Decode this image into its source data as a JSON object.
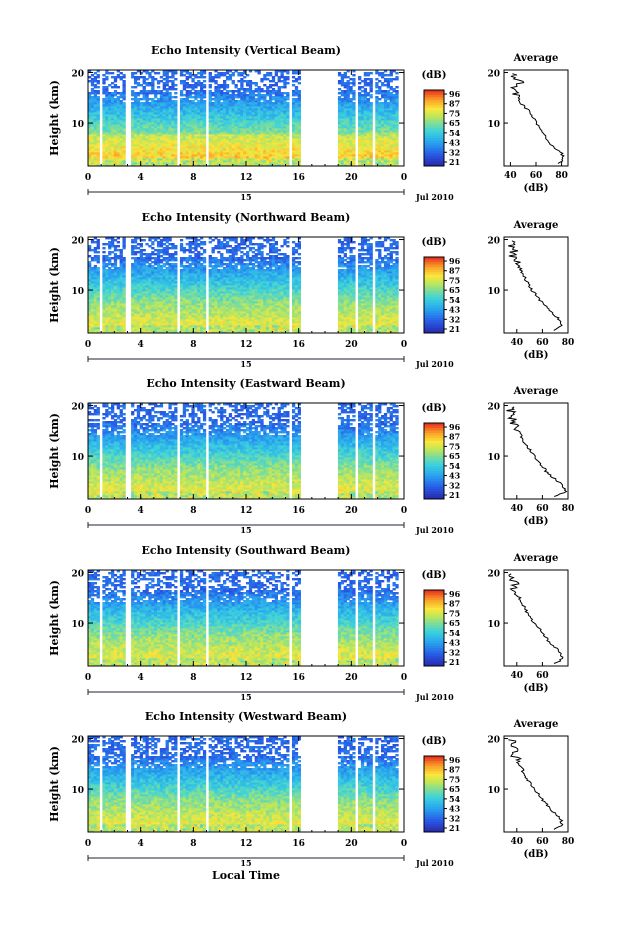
{
  "figure": {
    "xlabel_bottom": "Local Time",
    "date_label": "Jul 2010",
    "day_label": "15",
    "colorbar_unit": "(dB)",
    "colorbar_ticks": [
      "96",
      "87",
      "75",
      "65",
      "54",
      "43",
      "32",
      "21"
    ],
    "avg_title": "Average",
    "avg_xlabel": "(dB)",
    "height_label": "Height (km)"
  },
  "chart_data": [
    {
      "type": "heatmap",
      "title": "Echo Intensity (Vertical Beam)",
      "ylabel": "Height (km)",
      "x_ticks": [
        "0",
        "4",
        "8",
        "12",
        "16",
        "20",
        "0"
      ],
      "y_ticks": [
        "20",
        "10"
      ],
      "xlim": [
        0,
        24
      ],
      "ylim": [
        1.5,
        20.5
      ],
      "colorbar": {
        "label": "(dB)",
        "ticks": [
          "96",
          "87",
          "75",
          "65",
          "54",
          "43",
          "32",
          "21"
        ]
      },
      "data_gaps_hours": [
        [
          0.8,
          1.2
        ],
        [
          2.9,
          3.3
        ],
        [
          6.8,
          7.0
        ],
        [
          8.9,
          9.2
        ],
        [
          15.2,
          15.6
        ],
        [
          16.2,
          19.0
        ],
        [
          20.3,
          20.6
        ],
        [
          21.6,
          21.9
        ],
        [
          23.5,
          24
        ]
      ],
      "average_profile": {
        "title": "Average",
        "xlabel": "(dB)",
        "xticks": [
          "40",
          "60",
          "80"
        ],
        "xlim": [
          35,
          85
        ],
        "yticks": [
          "20",
          "10"
        ],
        "height_km": [
          2,
          3,
          4,
          5,
          6,
          7,
          8,
          9,
          10,
          11,
          12,
          13,
          14,
          15,
          16,
          17,
          18,
          19,
          20
        ],
        "value_db": [
          78,
          82,
          80,
          74,
          70,
          68,
          66,
          63,
          60,
          58,
          56,
          52,
          48,
          46,
          44,
          42,
          48,
          42,
          45
        ]
      }
    },
    {
      "type": "heatmap",
      "title": "Echo Intensity (Northward Beam)",
      "ylabel": "Height (km)",
      "x_ticks": [
        "0",
        "4",
        "8",
        "12",
        "16",
        "20",
        "0"
      ],
      "y_ticks": [
        "20",
        "10"
      ],
      "xlim": [
        0,
        24
      ],
      "ylim": [
        1.5,
        20.5
      ],
      "colorbar": {
        "label": "(dB)",
        "ticks": [
          "96",
          "87",
          "75",
          "65",
          "54",
          "43",
          "32",
          "21"
        ]
      },
      "data_gaps_hours": [
        [
          0.8,
          1.2
        ],
        [
          2.9,
          3.3
        ],
        [
          6.8,
          7.0
        ],
        [
          8.9,
          9.2
        ],
        [
          15.2,
          15.6
        ],
        [
          16.2,
          19.0
        ],
        [
          20.3,
          20.6
        ],
        [
          21.6,
          21.9
        ],
        [
          23.5,
          24
        ]
      ],
      "average_profile": {
        "title": "Average",
        "xlabel": "(dB)",
        "xticks": [
          "40",
          "60",
          "80"
        ],
        "xlim": [
          30,
          80
        ],
        "yticks": [
          "20",
          "10"
        ],
        "height_km": [
          2,
          3,
          4,
          5,
          6,
          7,
          8,
          9,
          10,
          11,
          12,
          13,
          14,
          15,
          16,
          17,
          18,
          19,
          20
        ],
        "value_db": [
          68,
          76,
          74,
          70,
          65,
          62,
          58,
          55,
          52,
          50,
          47,
          45,
          43,
          41,
          39,
          36,
          38,
          36,
          35
        ]
      }
    },
    {
      "type": "heatmap",
      "title": "Echo Intensity (Eastward Beam)",
      "ylabel": "Height (km)",
      "x_ticks": [
        "0",
        "4",
        "8",
        "12",
        "16",
        "20",
        "0"
      ],
      "y_ticks": [
        "20",
        "10"
      ],
      "xlim": [
        0,
        24
      ],
      "ylim": [
        1.5,
        20.5
      ],
      "colorbar": {
        "label": "(dB)",
        "ticks": [
          "96",
          "87",
          "75",
          "65",
          "54",
          "43",
          "32",
          "21"
        ]
      },
      "data_gaps_hours": [
        [
          0.8,
          1.2
        ],
        [
          2.9,
          3.3
        ],
        [
          6.8,
          7.0
        ],
        [
          8.9,
          9.2
        ],
        [
          15.2,
          15.6
        ],
        [
          16.2,
          19.0
        ],
        [
          20.3,
          20.6
        ],
        [
          21.6,
          21.9
        ],
        [
          23.5,
          24
        ]
      ],
      "average_profile": {
        "title": "Average",
        "xlabel": "(dB)",
        "xticks": [
          "40",
          "60",
          "80"
        ],
        "xlim": [
          30,
          80
        ],
        "yticks": [
          "20",
          "10"
        ],
        "height_km": [
          2,
          3,
          4,
          5,
          6,
          7,
          8,
          9,
          10,
          11,
          12,
          13,
          14,
          15,
          16,
          17,
          18,
          19,
          20
        ],
        "value_db": [
          70,
          78,
          76,
          72,
          67,
          63,
          60,
          57,
          54,
          51,
          48,
          45,
          43,
          41,
          39,
          36,
          38,
          35,
          36
        ]
      }
    },
    {
      "type": "heatmap",
      "title": "Echo Intensity (Southward Beam)",
      "ylabel": "Height (km)",
      "x_ticks": [
        "0",
        "4",
        "8",
        "12",
        "16",
        "20",
        "0"
      ],
      "y_ticks": [
        "20",
        "10"
      ],
      "xlim": [
        0,
        24
      ],
      "ylim": [
        1.5,
        20.5
      ],
      "colorbar": {
        "label": "(dB)",
        "ticks": [
          "96",
          "87",
          "75",
          "65",
          "54",
          "43",
          "32",
          "21"
        ]
      },
      "data_gaps_hours": [
        [
          0.8,
          1.2
        ],
        [
          2.9,
          3.3
        ],
        [
          6.8,
          7.0
        ],
        [
          8.9,
          9.2
        ],
        [
          15.2,
          15.6
        ],
        [
          16.2,
          19.0
        ],
        [
          20.3,
          20.6
        ],
        [
          21.6,
          21.9
        ],
        [
          23.5,
          24
        ]
      ],
      "average_profile": {
        "title": "Average",
        "xlabel": "(dB)",
        "xticks": [
          "40",
          "60"
        ],
        "xlim": [
          30,
          80
        ],
        "yticks": [
          "20",
          "10"
        ],
        "height_km": [
          2,
          3,
          4,
          5,
          6,
          7,
          8,
          9,
          10,
          11,
          12,
          13,
          14,
          15,
          16,
          17,
          18,
          19,
          20
        ],
        "value_db": [
          70,
          76,
          74,
          71,
          66,
          63,
          60,
          57,
          54,
          51,
          48,
          46,
          44,
          42,
          40,
          37,
          39,
          36,
          37
        ]
      }
    },
    {
      "type": "heatmap",
      "title": "Echo Intensity (Westward Beam)",
      "ylabel": "Height (km)",
      "x_ticks": [
        "0",
        "4",
        "8",
        "12",
        "16",
        "20",
        "0"
      ],
      "y_ticks": [
        "20",
        "10"
      ],
      "xlim": [
        0,
        24
      ],
      "ylim": [
        1.5,
        20.5
      ],
      "colorbar": {
        "label": "(dB)",
        "ticks": [
          "96",
          "87",
          "75",
          "65",
          "54",
          "43",
          "32",
          "21"
        ]
      },
      "data_gaps_hours": [
        [
          0.8,
          1.2
        ],
        [
          2.9,
          3.3
        ],
        [
          6.8,
          7.0
        ],
        [
          8.9,
          9.2
        ],
        [
          15.2,
          15.6
        ],
        [
          16.2,
          19.0
        ],
        [
          20.3,
          20.6
        ],
        [
          21.6,
          21.9
        ],
        [
          23.5,
          24
        ]
      ],
      "average_profile": {
        "title": "Average",
        "xlabel": "(dB)",
        "xticks": [
          "40",
          "60",
          "80"
        ],
        "xlim": [
          30,
          80
        ],
        "yticks": [
          "20",
          "10"
        ],
        "height_km": [
          2,
          3,
          4,
          5,
          6,
          7,
          8,
          9,
          10,
          11,
          12,
          13,
          14,
          15,
          16,
          17,
          18,
          19,
          20
        ],
        "value_db": [
          70,
          76,
          74,
          71,
          66,
          63,
          60,
          57,
          54,
          51,
          48,
          46,
          44,
          42,
          40,
          37,
          39,
          36,
          37
        ]
      }
    }
  ]
}
